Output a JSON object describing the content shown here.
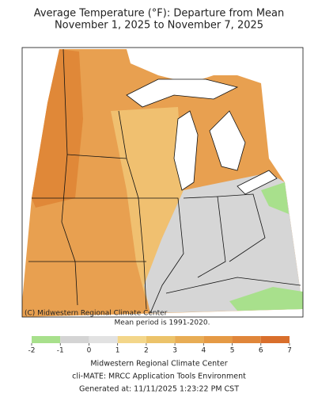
{
  "header": {
    "title": [
      "Average Temperature (°F): Departure from Mean",
      "November 1, 2025 to November 7, 2025"
    ]
  },
  "map": {
    "credit": "(C) Midwestern Regional Climate Center",
    "note": "Mean period is 1991-2020."
  },
  "legend": {
    "ticks": [
      -2,
      -1,
      0,
      1,
      2,
      3,
      4,
      5,
      6,
      7
    ],
    "colors": [
      "#a8e08c",
      "#d4d4d4",
      "#e2e2e2",
      "#f3d68a",
      "#ecc36a",
      "#e8ad55",
      "#e59a45",
      "#e0863a",
      "#d96f2c"
    ]
  },
  "footer": [
    "Midwestern Regional Climate Center",
    "cli-MATE: MRCC Application Tools Environment",
    "Generated at: 11/11/2025 1:23:22 PM CST"
  ]
}
